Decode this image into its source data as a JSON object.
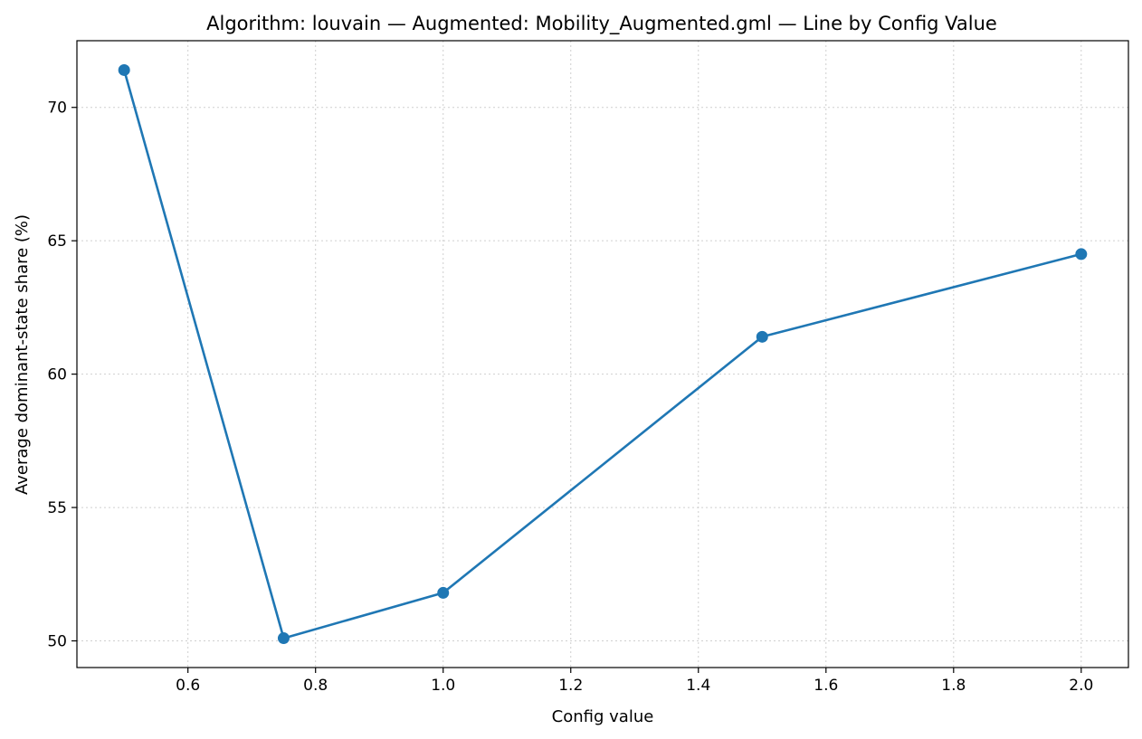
{
  "chart_data": {
    "type": "line",
    "title": "Algorithm: louvain — Augmented: Mobility_Augmented.gml — Line by Config Value",
    "xlabel": "Config value",
    "ylabel": "Average dominant-state share (%)",
    "x": [
      0.5,
      0.75,
      1.0,
      1.5,
      2.0
    ],
    "series": [
      {
        "values": [
          71.4,
          50.1,
          51.8,
          61.4,
          64.5
        ]
      }
    ],
    "xlim": [
      0.426,
      2.074
    ],
    "ylim": [
      49.0,
      72.5
    ],
    "xticks": [
      0.6,
      0.8,
      1.0,
      1.2,
      1.4,
      1.6,
      1.8,
      2.0
    ],
    "xtick_labels": [
      "0.6",
      "0.8",
      "1.0",
      "1.2",
      "1.4",
      "1.6",
      "1.8",
      "2.0"
    ],
    "yticks": [
      50,
      55,
      60,
      65,
      70
    ],
    "ytick_labels": [
      "50",
      "55",
      "60",
      "65",
      "70"
    ],
    "grid": true,
    "line_color": "#1f77b4"
  }
}
